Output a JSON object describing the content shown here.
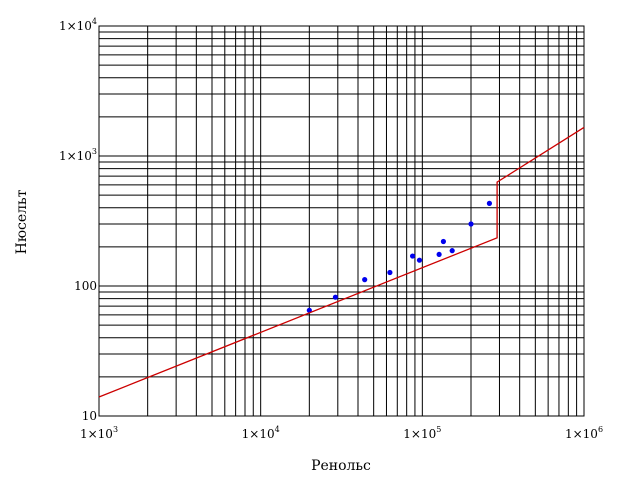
{
  "chart_data": {
    "type": "scatter",
    "title": "",
    "xlabel": "Ренольс",
    "ylabel": "Нюсельт",
    "x_scale": "log",
    "y_scale": "log",
    "xlim": [
      1000,
      1000000
    ],
    "ylim": [
      10,
      10000
    ],
    "grid": true,
    "x_ticks": [
      {
        "mantissa": "1×10",
        "exp": "3"
      },
      {
        "mantissa": "1×10",
        "exp": "4"
      },
      {
        "mantissa": "1×10",
        "exp": "5"
      },
      {
        "mantissa": "1×10",
        "exp": "6"
      }
    ],
    "y_ticks": [
      {
        "mantissa": "10",
        "exp": ""
      },
      {
        "mantissa": "100",
        "exp": ""
      },
      {
        "mantissa": "1×10",
        "exp": "3"
      },
      {
        "mantissa": "1×10",
        "exp": "4"
      }
    ],
    "series": [
      {
        "type": "scatter",
        "color": "#0000ee",
        "x": [
          20000,
          29000,
          44000,
          63000,
          87000,
          96000,
          127000,
          135000,
          153000,
          200000,
          260000
        ],
        "y": [
          65,
          82,
          112,
          127,
          170,
          158,
          175,
          220,
          187,
          300,
          432
        ]
      },
      {
        "type": "line",
        "color": "#cc0000",
        "x": [
          1000,
          290000,
          290000,
          290000,
          1000000
        ],
        "y": [
          14,
          235,
          430,
          630,
          1660
        ]
      }
    ]
  }
}
